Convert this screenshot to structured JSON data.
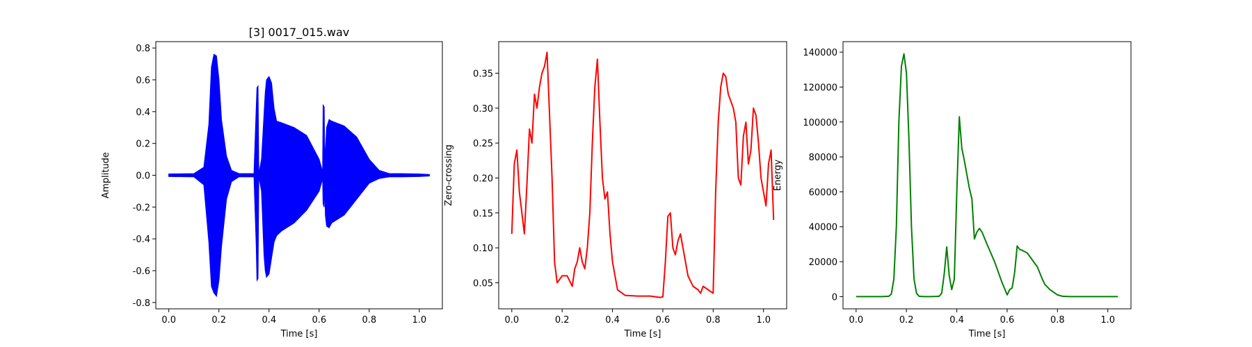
{
  "chart_data": [
    {
      "type": "line",
      "title": "[3] 0017_015.wav",
      "xlabel": "Time [s]",
      "ylabel": "Amplitude",
      "xlim": [
        -0.052,
        1.092
      ],
      "ylim": [
        -0.84,
        0.84
      ],
      "xticks": [
        "0.0",
        "0.2",
        "0.4",
        "0.6",
        "0.8",
        "1.0"
      ],
      "yticks": [
        "-0.8",
        "-0.6",
        "-0.4",
        "-0.2",
        "0.0",
        "0.2",
        "0.4",
        "0.6",
        "0.8"
      ],
      "color": "#0000ff",
      "envelope": {
        "t": [
          0.0,
          0.1,
          0.14,
          0.16,
          0.17,
          0.18,
          0.19,
          0.2,
          0.21,
          0.23,
          0.25,
          0.28,
          0.32,
          0.34,
          0.349,
          0.352,
          0.356,
          0.359,
          0.362,
          0.37,
          0.38,
          0.385,
          0.39,
          0.4,
          0.41,
          0.42,
          0.43,
          0.45,
          0.5,
          0.55,
          0.6,
          0.614,
          0.616,
          0.62,
          0.623,
          0.625,
          0.63,
          0.64,
          0.65,
          0.7,
          0.75,
          0.8,
          0.84,
          0.88,
          0.93,
          1.0,
          1.04
        ],
        "max": [
          0.008,
          0.01,
          0.05,
          0.32,
          0.68,
          0.76,
          0.75,
          0.6,
          0.35,
          0.12,
          0.03,
          0.01,
          0.01,
          0.01,
          0.42,
          0.55,
          0.56,
          0.03,
          0.03,
          0.1,
          0.38,
          0.52,
          0.6,
          0.62,
          0.58,
          0.42,
          0.34,
          0.33,
          0.3,
          0.25,
          0.1,
          0.02,
          0.44,
          0.43,
          0.02,
          0.15,
          0.3,
          0.35,
          0.34,
          0.31,
          0.24,
          0.1,
          0.03,
          0.01,
          0.01,
          0.008,
          0.005
        ],
        "min": [
          -0.008,
          -0.01,
          -0.06,
          -0.42,
          -0.7,
          -0.74,
          -0.76,
          -0.66,
          -0.45,
          -0.15,
          -0.04,
          -0.01,
          -0.01,
          -0.01,
          -0.44,
          -0.66,
          -0.65,
          -0.03,
          -0.03,
          -0.1,
          -0.5,
          -0.6,
          -0.64,
          -0.62,
          -0.52,
          -0.42,
          -0.38,
          -0.35,
          -0.3,
          -0.22,
          -0.1,
          -0.02,
          -0.18,
          -0.2,
          -0.02,
          -0.25,
          -0.32,
          -0.33,
          -0.3,
          -0.25,
          -0.15,
          -0.05,
          -0.02,
          -0.01,
          -0.01,
          -0.008,
          -0.005
        ]
      }
    },
    {
      "type": "line",
      "title": "",
      "xlabel": "Time [s]",
      "ylabel": "Zero-crossing",
      "xlim": [
        -0.052,
        1.092
      ],
      "ylim": [
        0.0127,
        0.3952
      ],
      "xticks": [
        "0.0",
        "0.2",
        "0.4",
        "0.6",
        "0.8",
        "1.0"
      ],
      "yticks": [
        "0.05",
        "0.10",
        "0.15",
        "0.20",
        "0.25",
        "0.30",
        "0.35"
      ],
      "color": "#ff0000",
      "x": [
        0.0,
        0.01,
        0.02,
        0.03,
        0.04,
        0.05,
        0.06,
        0.07,
        0.08,
        0.09,
        0.1,
        0.11,
        0.12,
        0.13,
        0.14,
        0.16,
        0.17,
        0.18,
        0.2,
        0.22,
        0.24,
        0.25,
        0.26,
        0.27,
        0.28,
        0.29,
        0.3,
        0.31,
        0.32,
        0.33,
        0.34,
        0.35,
        0.36,
        0.37,
        0.38,
        0.39,
        0.4,
        0.42,
        0.45,
        0.5,
        0.55,
        0.59,
        0.6,
        0.61,
        0.62,
        0.63,
        0.64,
        0.65,
        0.66,
        0.67,
        0.68,
        0.7,
        0.72,
        0.74,
        0.75,
        0.76,
        0.78,
        0.8,
        0.81,
        0.82,
        0.83,
        0.84,
        0.85,
        0.86,
        0.87,
        0.88,
        0.89,
        0.9,
        0.91,
        0.92,
        0.93,
        0.94,
        0.95,
        0.96,
        0.97,
        0.98,
        0.99,
        1.0,
        1.01,
        1.02,
        1.03,
        1.04
      ],
      "y": [
        0.12,
        0.22,
        0.24,
        0.18,
        0.15,
        0.12,
        0.19,
        0.27,
        0.25,
        0.32,
        0.3,
        0.33,
        0.35,
        0.36,
        0.38,
        0.2,
        0.08,
        0.05,
        0.06,
        0.06,
        0.045,
        0.07,
        0.08,
        0.1,
        0.08,
        0.07,
        0.1,
        0.15,
        0.25,
        0.33,
        0.37,
        0.28,
        0.2,
        0.17,
        0.18,
        0.12,
        0.08,
        0.04,
        0.032,
        0.031,
        0.031,
        0.029,
        0.03,
        0.08,
        0.145,
        0.15,
        0.1,
        0.09,
        0.11,
        0.12,
        0.1,
        0.06,
        0.045,
        0.04,
        0.035,
        0.045,
        0.04,
        0.035,
        0.18,
        0.28,
        0.33,
        0.35,
        0.345,
        0.32,
        0.31,
        0.3,
        0.28,
        0.2,
        0.19,
        0.26,
        0.28,
        0.22,
        0.24,
        0.3,
        0.29,
        0.25,
        0.2,
        0.18,
        0.16,
        0.22,
        0.24,
        0.14
      ]
    },
    {
      "type": "line",
      "title": "",
      "xlabel": "Time [s]",
      "ylabel": "Energy",
      "xlim": [
        -0.052,
        1.092
      ],
      "ylim": [
        -7000,
        146000
      ],
      "xticks": [
        "0.0",
        "0.2",
        "0.4",
        "0.6",
        "0.8",
        "1.0"
      ],
      "yticks": [
        "0",
        "20000",
        "40000",
        "60000",
        "80000",
        "100000",
        "120000",
        "140000"
      ],
      "color": "#008000",
      "x": [
        0.0,
        0.05,
        0.1,
        0.13,
        0.14,
        0.15,
        0.16,
        0.17,
        0.18,
        0.19,
        0.2,
        0.21,
        0.22,
        0.23,
        0.24,
        0.25,
        0.27,
        0.3,
        0.33,
        0.34,
        0.35,
        0.36,
        0.37,
        0.38,
        0.39,
        0.4,
        0.41,
        0.42,
        0.43,
        0.44,
        0.45,
        0.46,
        0.47,
        0.48,
        0.49,
        0.5,
        0.52,
        0.55,
        0.58,
        0.6,
        0.61,
        0.62,
        0.63,
        0.64,
        0.65,
        0.66,
        0.68,
        0.7,
        0.72,
        0.74,
        0.75,
        0.77,
        0.8,
        0.82,
        0.85,
        0.9,
        1.0,
        1.04
      ],
      "y": [
        0,
        0,
        0,
        200,
        1500,
        10000,
        40000,
        100000,
        132000,
        139000,
        128000,
        90000,
        40000,
        10000,
        2000,
        200,
        0,
        0,
        200,
        2000,
        13000,
        28500,
        12000,
        4000,
        10000,
        60000,
        103000,
        85000,
        78000,
        70000,
        62000,
        56000,
        33000,
        37000,
        39000,
        37000,
        30000,
        20000,
        8000,
        1000,
        4000,
        5000,
        14000,
        29000,
        27000,
        26500,
        25000,
        21000,
        17000,
        10000,
        7000,
        4000,
        1000,
        200,
        0,
        0,
        0,
        0
      ]
    }
  ]
}
